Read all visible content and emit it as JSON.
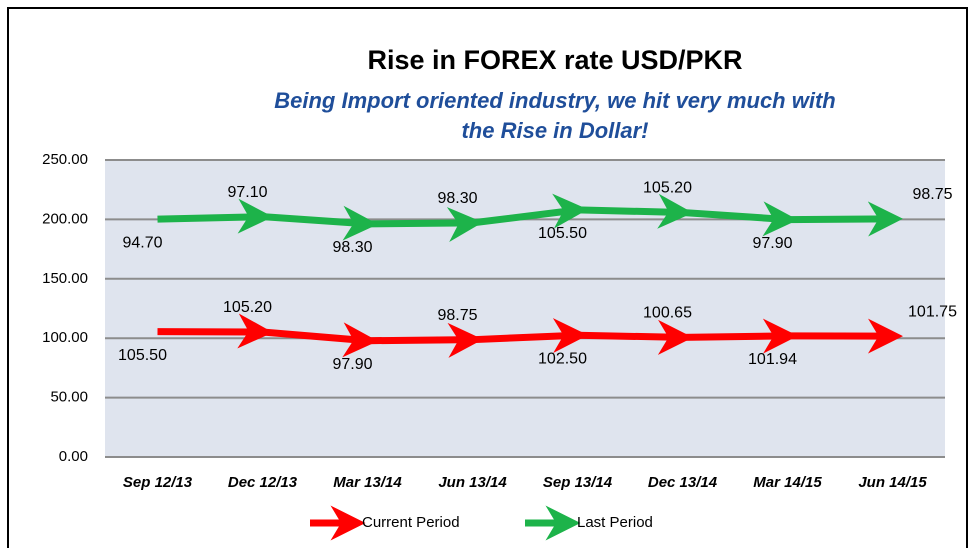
{
  "chart_data": {
    "type": "line",
    "stacked": true,
    "title": "Rise in FOREX rate USD/PKR",
    "subtitle": [
      "Being Import oriented industry, we hit very much with",
      "the Rise in Dollar!"
    ],
    "categories": [
      "Sep 12/13",
      "Dec 12/13",
      "Mar 13/14",
      "Jun 13/14",
      "Sep 13/14",
      "Dec 13/14",
      "Mar 14/15",
      "Jun 14/15"
    ],
    "series": [
      {
        "name": "Current Period",
        "color": "#ff0000",
        "values": [
          105.5,
          105.2,
          97.9,
          98.75,
          102.5,
          100.65,
          101.94,
          101.75
        ],
        "value_labels": [
          "105.50",
          "105.20",
          "97.90",
          "98.75",
          "102.50",
          "100.65",
          "101.94",
          "101.75"
        ]
      },
      {
        "name": "Last Period",
        "color": "#1db34a",
        "values": [
          94.7,
          97.1,
          98.3,
          98.3,
          105.5,
          105.2,
          97.9,
          98.75
        ],
        "value_labels": [
          "94.70",
          "97.10",
          "98.30",
          "98.30",
          "105.50",
          "105.20",
          "97.90",
          "98.75"
        ]
      }
    ],
    "ylim": [
      0,
      250
    ],
    "yticks": [
      {
        "value": 0,
        "label": "0.00"
      },
      {
        "value": 50,
        "label": "50.00"
      },
      {
        "value": 100,
        "label": "100.00"
      },
      {
        "value": 150,
        "label": "150.00"
      },
      {
        "value": 200,
        "label": "200.00"
      },
      {
        "value": 250,
        "label": "250.00"
      }
    ],
    "grid": true,
    "legend": "bottom"
  }
}
